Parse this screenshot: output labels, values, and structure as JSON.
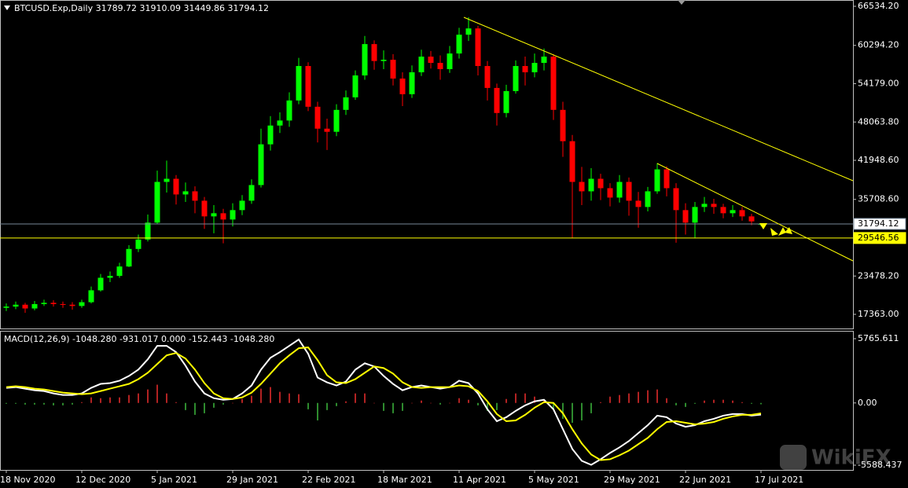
{
  "chart_data": [
    {
      "type": "candlestick",
      "title": "BTCUSD.Exp,Daily  31789.72 31910.09 31449.86 31794.12",
      "categories": [
        "18 Nov 2020",
        null,
        null,
        null,
        null,
        null,
        null,
        null,
        "12 Dec 2020",
        null,
        null,
        null,
        null,
        null,
        null,
        null,
        "5 Jan 2021",
        null,
        null,
        null,
        null,
        null,
        null,
        null,
        "29 Jan 2021",
        null,
        null,
        null,
        null,
        null,
        null,
        null,
        "22 Feb 2021",
        null,
        null,
        null,
        null,
        null,
        null,
        null,
        "18 Mar 2021",
        null,
        null,
        null,
        null,
        null,
        null,
        null,
        "11 Apr 2021",
        null,
        null,
        null,
        null,
        null,
        null,
        null,
        "5 May 2021",
        null,
        null,
        null,
        null,
        null,
        null,
        null,
        "29 May 2021",
        null,
        null,
        null,
        null,
        null,
        null,
        null,
        "22 Jun 2021",
        null,
        null,
        null,
        null,
        null,
        null,
        null,
        "17 Jul 2021"
      ],
      "open": [
        18400,
        18600,
        18900,
        18300,
        19000,
        19200,
        19000,
        18900,
        18700,
        19300,
        21200,
        23200,
        23500,
        25000,
        27800,
        29300,
        32000,
        38500,
        39000,
        36500,
        37000,
        35500,
        33000,
        33500,
        32500,
        34000,
        35500,
        38000,
        44500,
        47500,
        48300,
        51500,
        57000,
        50500,
        47000,
        46500,
        50000,
        52000,
        55500,
        60500,
        57800,
        58000,
        55000,
        52500,
        56000,
        58500,
        57500,
        56500,
        59000,
        62000,
        63000,
        57000,
        53500,
        49500,
        53000,
        57000,
        56000,
        57500,
        58500,
        50000,
        45000,
        38500,
        37000,
        39000,
        37500,
        36000,
        38500,
        35500,
        34500,
        37000,
        40500,
        37500,
        34000,
        32000,
        34500,
        35000,
        34500,
        33500,
        34000,
        33000,
        31789.72
      ],
      "high": [
        19100,
        19400,
        19200,
        19500,
        19700,
        19600,
        19400,
        19300,
        19700,
        21800,
        23800,
        24200,
        25600,
        28400,
        30100,
        33300,
        40300,
        41900,
        39600,
        38400,
        37800,
        36100,
        34800,
        34200,
        35100,
        36400,
        38900,
        47000,
        49000,
        49600,
        52800,
        58300,
        57600,
        51300,
        48600,
        50900,
        53100,
        56300,
        61800,
        61100,
        59500,
        58900,
        56000,
        57100,
        59600,
        59400,
        58700,
        60200,
        63100,
        64800,
        63400,
        57800,
        54200,
        54000,
        57900,
        58500,
        59000,
        59800,
        58900,
        51300,
        46000,
        40900,
        40700,
        39800,
        38300,
        39600,
        39200,
        36900,
        37700,
        41500,
        41000,
        38300,
        35100,
        35300,
        36100,
        35800,
        35000,
        34800,
        34500,
        33400,
        31910.09
      ],
      "low": [
        17900,
        18200,
        17600,
        18000,
        18700,
        18600,
        18400,
        18100,
        18400,
        19100,
        21000,
        22500,
        23200,
        24900,
        27300,
        29000,
        31800,
        36800,
        34900,
        35300,
        33500,
        31000,
        30300,
        28700,
        31400,
        33200,
        35000,
        37600,
        43500,
        46300,
        47300,
        50900,
        49800,
        44800,
        43600,
        45800,
        49200,
        51600,
        54800,
        56400,
        56500,
        53900,
        50600,
        51900,
        55400,
        56600,
        54800,
        55900,
        58200,
        61000,
        55500,
        51500,
        47500,
        48800,
        52600,
        53900,
        55200,
        56300,
        48400,
        42500,
        29500,
        34800,
        35500,
        35600,
        34600,
        35200,
        33100,
        31200,
        33800,
        36600,
        36200,
        28800,
        30100,
        29500,
        33700,
        33400,
        32700,
        32900,
        32300,
        31600,
        31449.86
      ],
      "close": [
        18600,
        18900,
        18300,
        19000,
        19200,
        19000,
        18900,
        18700,
        19300,
        21200,
        23200,
        23500,
        25000,
        27800,
        29300,
        32000,
        38500,
        39000,
        36500,
        37000,
        35500,
        33000,
        33500,
        32500,
        34000,
        35500,
        38000,
        44500,
        47500,
        48300,
        51500,
        57000,
        50500,
        47000,
        46500,
        50000,
        52000,
        55500,
        60500,
        57800,
        58000,
        55000,
        52500,
        56000,
        58500,
        57500,
        56500,
        59000,
        62000,
        63000,
        57000,
        53500,
        49500,
        53000,
        57000,
        56000,
        57500,
        58500,
        50000,
        45000,
        38500,
        37000,
        39000,
        37500,
        36000,
        38500,
        35500,
        34500,
        37000,
        40500,
        37500,
        34000,
        32000,
        34500,
        35000,
        34500,
        33500,
        34000,
        33000,
        32200,
        31794.12
      ],
      "up_color": "#00ff00",
      "down_color": "#ff0000",
      "ylim": [
        14980,
        67538
      ],
      "yticks": [
        {
          "value": 66534.2,
          "label": "66534.20"
        },
        {
          "value": 60294.2,
          "label": "60294.20"
        },
        {
          "value": 54179,
          "label": "54179.00"
        },
        {
          "value": 48063.8,
          "label": "48063.80"
        },
        {
          "value": 41948.6,
          "label": "41948.60"
        },
        {
          "value": 35708.6,
          "label": "35708.60"
        },
        {
          "value": 23478.2,
          "label": "23478.20"
        },
        {
          "value": 17363,
          "label": "17363.00"
        }
      ],
      "hlines": [
        {
          "value": 31794.12,
          "color": "#778899",
          "label_bg": "#ffffff"
        },
        {
          "value": 29546.56,
          "color": "#ffff00",
          "label_bg": "#ffff00"
        }
      ]
    },
    {
      "type": "macd",
      "title": "MACD(12,26,9) -1048.280 -931.017 0.000 -152.443 -1048.280",
      "ylim": [
        -6011,
        6471
      ],
      "yticks": [
        5765.611,
        {
          "value": 0,
          "label": "0.00"
        },
        -5588.437
      ],
      "series": [
        {
          "type": "histogram",
          "up_color": "#b22222",
          "down_color": "#2e8b2e",
          "values": [
            -71,
            -71,
            -142,
            -143,
            -142,
            -214,
            -214,
            -142,
            71,
            499,
            427,
            498,
            499,
            712,
            854,
            1210,
            1637,
            854,
            71,
            -641,
            -1068,
            -926,
            -427,
            -142,
            0,
            356,
            640,
            1281,
            1424,
            997,
            854,
            783,
            -570,
            -1567,
            -641,
            -285,
            142,
            854,
            854,
            0,
            -712,
            -925,
            -712,
            0,
            213,
            0,
            -142,
            0,
            428,
            285,
            -214,
            -712,
            -641,
            356,
            854,
            854,
            569,
            214,
            -570,
            -1424,
            -1780,
            -1567,
            -926,
            70,
            569,
            711,
            854,
            996,
            1139,
            1211,
            427,
            -213,
            -356,
            -72,
            213,
            285,
            285,
            213,
            71,
            -71,
            -117.26
          ]
        },
        {
          "type": "line",
          "color": "#ffffff",
          "values": [
            1353,
            1424,
            1282,
            1139,
            1068,
            854,
            712,
            712,
            854,
            1353,
            1709,
            1780,
            1994,
            2421,
            2990,
            3916,
            5126,
            5126,
            4557,
            3346,
            1922,
            854,
            427,
            285,
            356,
            854,
            1566,
            2990,
            4058,
            4557,
            5126,
            5696,
            4414,
            2278,
            1851,
            1566,
            1922,
            2990,
            3560,
            3275,
            2421,
            1709,
            1139,
            1424,
            1566,
            1424,
            1282,
            1424,
            1994,
            1780,
            854,
            -570,
            -1638,
            -1282,
            -712,
            -214,
            142,
            285,
            -570,
            -2350,
            -4130,
            -5198,
            -5554,
            -5056,
            -4486,
            -3988,
            -3418,
            -2706,
            -1994,
            -1139,
            -1282,
            -1851,
            -2136,
            -1994,
            -1638,
            -1424,
            -1139,
            -997,
            -997,
            -1139,
            -1048.28
          ]
        },
        {
          "type": "line",
          "color": "#ffff00",
          "values": [
            1424,
            1495,
            1424,
            1282,
            1210,
            1068,
            926,
            854,
            783,
            854,
            1068,
            1282,
            1495,
            1709,
            2136,
            2706,
            3489,
            4272,
            4486,
            3987,
            2990,
            1780,
            854,
            427,
            356,
            498,
            926,
            1709,
            2634,
            3560,
            4272,
            4913,
            4984,
            3845,
            2492,
            1851,
            1780,
            2136,
            2706,
            3275,
            3133,
            2634,
            1851,
            1424,
            1353,
            1424,
            1424,
            1424,
            1566,
            1495,
            1068,
            142,
            -997,
            -1638,
            -1566,
            -1068,
            -427,
            71,
            0,
            -926,
            -2350,
            -3631,
            -4628,
            -5126,
            -5055,
            -4699,
            -4272,
            -3702,
            -3133,
            -2350,
            -1709,
            -1638,
            -1780,
            -1922,
            -1851,
            -1709,
            -1424,
            -1210,
            -1068,
            -1068,
            -931.017
          ]
        }
      ]
    }
  ],
  "watermark": "WikiFX"
}
